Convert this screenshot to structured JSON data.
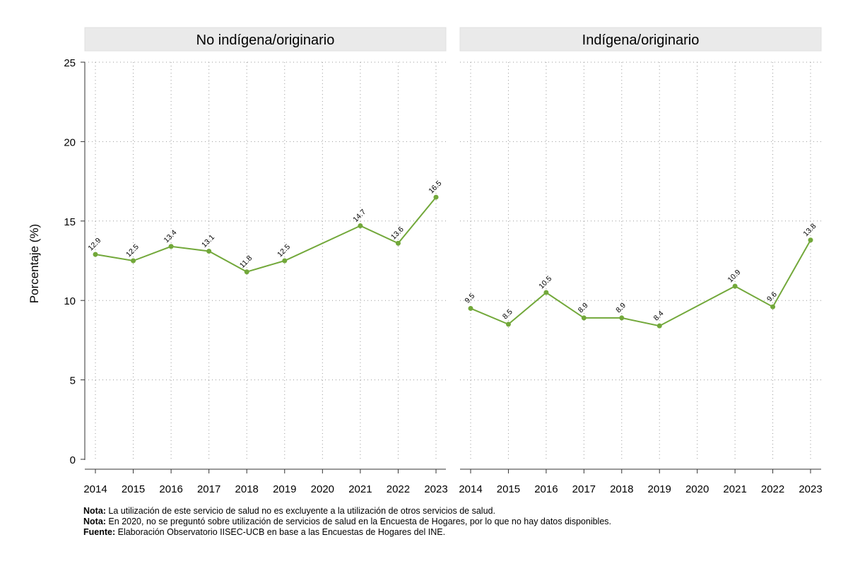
{
  "chart_data": {
    "type": "line",
    "ylabel": "Porcentaje (%)",
    "ylim": [
      0,
      25
    ],
    "yticks": [
      0,
      5,
      10,
      15,
      20,
      25
    ],
    "x": [
      "2014",
      "2015",
      "2016",
      "2017",
      "2018",
      "2019",
      "2020",
      "2021",
      "2022",
      "2023"
    ],
    "line_color": "#72a83a",
    "grid": true,
    "panels": [
      {
        "title": "No indígena/originario",
        "values": [
          12.9,
          12.5,
          13.4,
          13.1,
          11.8,
          12.5,
          null,
          14.7,
          13.6,
          16.5
        ],
        "labels": [
          "12.9",
          "12.5",
          "13.4",
          "13.1",
          "11.8",
          "12.5",
          "",
          "14.7",
          "13.6",
          "16.5"
        ]
      },
      {
        "title": "Indígena/originario",
        "values": [
          9.5,
          8.5,
          10.5,
          8.9,
          8.9,
          8.4,
          null,
          10.9,
          9.6,
          13.8
        ],
        "labels": [
          "9.5",
          "8.5",
          "10.5",
          "8.9",
          "8.9",
          "8.4",
          "",
          "10.9",
          "9.6",
          "13.8"
        ]
      }
    ]
  },
  "notes": [
    {
      "label": "Nota:",
      "text": " La utilización de este servicio de salud no es excluyente a la utilización de otros servicios de salud."
    },
    {
      "label": "Nota:",
      "text": " En 2020, no se preguntó sobre utilización de servicios de salud en la Encuesta de Hogares, por lo que no hay datos disponibles."
    },
    {
      "label": "Fuente:",
      "text": " Elaboración Observatorio IISEC-UCB en base a las Encuestas de Hogares del INE."
    }
  ]
}
